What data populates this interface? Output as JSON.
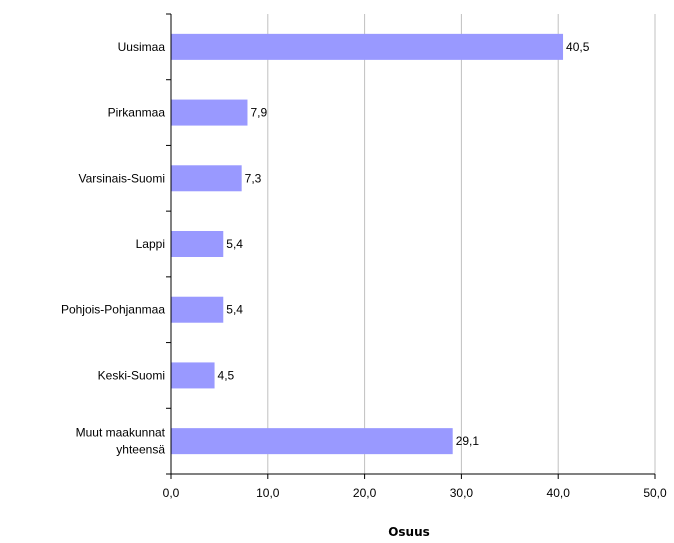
{
  "chart_data": {
    "type": "bar",
    "orientation": "horizontal",
    "title": "",
    "xlabel": "Osuus",
    "ylabel": "",
    "categories": [
      "Uusimaa",
      "Pirkanmaa",
      "Varsinais-Suomi",
      "Lappi",
      "Pohjois-Pohjanmaa",
      "Keski-Suomi",
      "Muut maakunnat yhteensä"
    ],
    "category_lines": [
      [
        "Uusimaa"
      ],
      [
        "Pirkanmaa"
      ],
      [
        "Varsinais-Suomi"
      ],
      [
        "Lappi"
      ],
      [
        "Pohjois-Pohjanmaa"
      ],
      [
        "Keski-Suomi"
      ],
      [
        "Muut maakunnat",
        "yhteensä"
      ]
    ],
    "values": [
      40.5,
      7.9,
      7.3,
      5.4,
      5.4,
      4.5,
      29.1
    ],
    "value_labels": [
      "40,5",
      "7,9",
      "7,3",
      "5,4",
      "5,4",
      "4,5",
      "29,1"
    ],
    "xlim": [
      0,
      50
    ],
    "xticks": [
      0,
      10,
      20,
      30,
      40,
      50
    ],
    "xtick_labels": [
      "0,0",
      "10,0",
      "20,0",
      "30,0",
      "40,0",
      "50,0"
    ],
    "grid": "vertical",
    "legend": "none",
    "colors": {
      "bar": "#9999ff",
      "grid": "#c0c0c0",
      "axis": "#000000"
    }
  }
}
